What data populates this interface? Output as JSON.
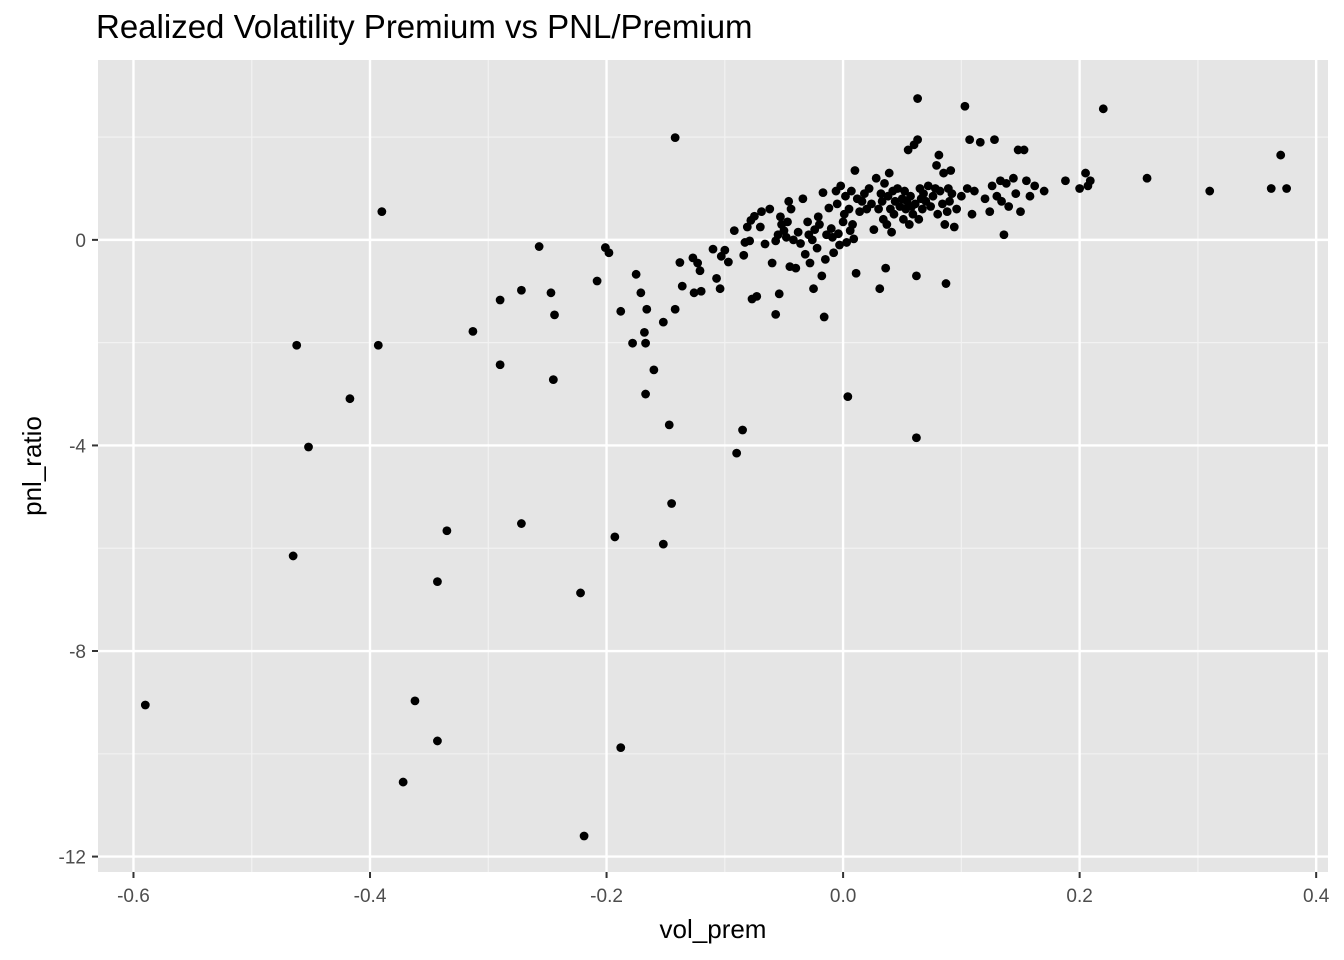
{
  "chart_data": {
    "type": "scatter",
    "title": "Realized Volatility Premium vs PNL/Premium",
    "xlabel": "vol_prem",
    "ylabel": "pnl_ratio",
    "xlim": [
      -0.63,
      0.41
    ],
    "ylim": [
      -12.3,
      3.5
    ],
    "x_ticks": [
      -0.6,
      -0.4,
      -0.2,
      0.0,
      0.2,
      0.4
    ],
    "x_tick_labels": [
      "-0.6",
      "-0.4",
      "-0.2",
      "0.0",
      "0.2",
      "0.4"
    ],
    "y_ticks": [
      -12,
      -8,
      -4,
      0
    ],
    "y_tick_labels": [
      "-12",
      "-8",
      "-4",
      "0"
    ],
    "grid": true,
    "background": "#e5e5e5",
    "point_color": "#000000",
    "points": [
      [
        -0.59,
        -9.05
      ],
      [
        -0.465,
        -6.15
      ],
      [
        -0.462,
        -2.05
      ],
      [
        -0.452,
        -4.03
      ],
      [
        -0.417,
        -3.09
      ],
      [
        -0.393,
        -2.05
      ],
      [
        -0.39,
        0.55
      ],
      [
        -0.372,
        -10.55
      ],
      [
        -0.362,
        -8.97
      ],
      [
        -0.343,
        -9.75
      ],
      [
        -0.343,
        -6.65
      ],
      [
        -0.335,
        -5.66
      ],
      [
        -0.313,
        -1.78
      ],
      [
        -0.29,
        -2.43
      ],
      [
        -0.29,
        -1.17
      ],
      [
        -0.272,
        -5.52
      ],
      [
        -0.272,
        -0.98
      ],
      [
        -0.257,
        -0.13
      ],
      [
        -0.247,
        -1.03
      ],
      [
        -0.245,
        -2.72
      ],
      [
        -0.244,
        -1.46
      ],
      [
        -0.222,
        -6.87
      ],
      [
        -0.219,
        -11.6
      ],
      [
        -0.208,
        -0.8
      ],
      [
        -0.201,
        -0.15
      ],
      [
        -0.198,
        -0.25
      ],
      [
        -0.193,
        -5.78
      ],
      [
        -0.188,
        -9.88
      ],
      [
        -0.188,
        -1.39
      ],
      [
        -0.178,
        -2.01
      ],
      [
        -0.175,
        -0.67
      ],
      [
        -0.171,
        -1.03
      ],
      [
        -0.168,
        -1.8
      ],
      [
        -0.167,
        -2.01
      ],
      [
        -0.167,
        -3.0
      ],
      [
        -0.166,
        -1.35
      ],
      [
        -0.16,
        -2.53
      ],
      [
        -0.152,
        -1.6
      ],
      [
        -0.152,
        -5.92
      ],
      [
        -0.147,
        -3.6
      ],
      [
        -0.145,
        -5.13
      ],
      [
        -0.142,
        1.99
      ],
      [
        -0.142,
        -1.35
      ],
      [
        -0.138,
        -0.44
      ],
      [
        -0.136,
        -0.9
      ],
      [
        -0.127,
        -0.35
      ],
      [
        -0.126,
        -1.03
      ],
      [
        -0.123,
        -0.45
      ],
      [
        -0.121,
        -0.6
      ],
      [
        -0.12,
        -1.0
      ],
      [
        -0.11,
        -0.18
      ],
      [
        -0.107,
        -0.75
      ],
      [
        -0.104,
        -0.95
      ],
      [
        -0.103,
        -0.32
      ],
      [
        -0.1,
        -0.2
      ],
      [
        -0.097,
        -0.43
      ],
      [
        -0.092,
        0.18
      ],
      [
        -0.09,
        -4.15
      ],
      [
        -0.085,
        -3.7
      ],
      [
        -0.084,
        -0.3
      ],
      [
        -0.083,
        -0.05
      ],
      [
        -0.081,
        0.25
      ],
      [
        -0.079,
        -0.02
      ],
      [
        -0.078,
        0.38
      ],
      [
        -0.077,
        -1.15
      ],
      [
        -0.075,
        0.46
      ],
      [
        -0.073,
        -1.1
      ],
      [
        -0.07,
        0.25
      ],
      [
        -0.069,
        0.55
      ],
      [
        -0.066,
        -0.08
      ],
      [
        -0.062,
        0.6
      ],
      [
        -0.06,
        -0.45
      ],
      [
        -0.057,
        -0.02
      ],
      [
        -0.057,
        -1.45
      ],
      [
        -0.055,
        0.1
      ],
      [
        -0.054,
        -1.05
      ],
      [
        -0.053,
        0.45
      ],
      [
        -0.052,
        0.3
      ],
      [
        -0.05,
        0.18
      ],
      [
        -0.048,
        0.05
      ],
      [
        -0.047,
        0.35
      ],
      [
        -0.046,
        0.75
      ],
      [
        -0.045,
        -0.52
      ],
      [
        -0.044,
        0.6
      ],
      [
        -0.042,
        0.0
      ],
      [
        -0.04,
        -0.55
      ],
      [
        -0.038,
        0.15
      ],
      [
        -0.036,
        -0.07
      ],
      [
        -0.034,
        0.8
      ],
      [
        -0.032,
        -0.28
      ],
      [
        -0.03,
        0.35
      ],
      [
        -0.029,
        0.1
      ],
      [
        -0.028,
        -0.45
      ],
      [
        -0.026,
        0.0
      ],
      [
        -0.025,
        -0.95
      ],
      [
        -0.024,
        0.2
      ],
      [
        -0.022,
        -0.16
      ],
      [
        -0.021,
        0.45
      ],
      [
        -0.02,
        0.3
      ],
      [
        -0.018,
        -0.7
      ],
      [
        -0.017,
        0.92
      ],
      [
        -0.016,
        -1.5
      ],
      [
        -0.015,
        -0.38
      ],
      [
        -0.014,
        0.1
      ],
      [
        -0.012,
        0.62
      ],
      [
        -0.01,
        0.22
      ],
      [
        -0.009,
        0.05
      ],
      [
        -0.008,
        -0.25
      ],
      [
        -0.006,
        0.95
      ],
      [
        -0.005,
        0.7
      ],
      [
        -0.004,
        0.12
      ],
      [
        -0.003,
        -0.1
      ],
      [
        -0.002,
        1.05
      ],
      [
        0.0,
        0.35
      ],
      [
        0.001,
        0.5
      ],
      [
        0.002,
        0.85
      ],
      [
        0.003,
        -0.05
      ],
      [
        0.004,
        -3.05
      ],
      [
        0.005,
        0.6
      ],
      [
        0.006,
        0.18
      ],
      [
        0.007,
        0.95
      ],
      [
        0.008,
        0.3
      ],
      [
        0.009,
        0.02
      ],
      [
        0.01,
        1.35
      ],
      [
        0.011,
        -0.65
      ],
      [
        0.012,
        0.8
      ],
      [
        0.014,
        0.55
      ],
      [
        0.016,
        0.75
      ],
      [
        0.018,
        0.9
      ],
      [
        0.02,
        0.6
      ],
      [
        0.022,
        1.0
      ],
      [
        0.024,
        0.7
      ],
      [
        0.026,
        0.2
      ],
      [
        0.028,
        1.2
      ],
      [
        0.03,
        0.6
      ],
      [
        0.031,
        -0.95
      ],
      [
        0.032,
        0.9
      ],
      [
        0.033,
        0.75
      ],
      [
        0.034,
        0.4
      ],
      [
        0.035,
        1.1
      ],
      [
        0.036,
        -0.55
      ],
      [
        0.037,
        0.3
      ],
      [
        0.038,
        0.85
      ],
      [
        0.039,
        1.3
      ],
      [
        0.04,
        0.6
      ],
      [
        0.041,
        0.15
      ],
      [
        0.042,
        0.95
      ],
      [
        0.043,
        0.5
      ],
      [
        0.044,
        0.75
      ],
      [
        0.046,
        1.0
      ],
      [
        0.048,
        0.65
      ],
      [
        0.05,
        0.8
      ],
      [
        0.051,
        0.4
      ],
      [
        0.052,
        0.95
      ],
      [
        0.053,
        0.6
      ],
      [
        0.054,
        0.75
      ],
      [
        0.055,
        1.75
      ],
      [
        0.056,
        0.3
      ],
      [
        0.057,
        0.85
      ],
      [
        0.058,
        0.65
      ],
      [
        0.059,
        0.5
      ],
      [
        0.06,
        1.85
      ],
      [
        0.061,
        0.7
      ],
      [
        0.062,
        -3.85
      ],
      [
        0.062,
        -0.7
      ],
      [
        0.063,
        2.75
      ],
      [
        0.063,
        1.95
      ],
      [
        0.064,
        0.4
      ],
      [
        0.065,
        1.0
      ],
      [
        0.066,
        0.8
      ],
      [
        0.067,
        0.6
      ],
      [
        0.068,
        0.9
      ],
      [
        0.07,
        0.75
      ],
      [
        0.072,
        1.05
      ],
      [
        0.074,
        0.65
      ],
      [
        0.076,
        0.85
      ],
      [
        0.078,
        1.0
      ],
      [
        0.079,
        1.45
      ],
      [
        0.08,
        0.5
      ],
      [
        0.081,
        1.65
      ],
      [
        0.082,
        0.95
      ],
      [
        0.084,
        0.7
      ],
      [
        0.085,
        1.3
      ],
      [
        0.086,
        0.3
      ],
      [
        0.087,
        -0.85
      ],
      [
        0.088,
        0.55
      ],
      [
        0.089,
        1.0
      ],
      [
        0.09,
        0.75
      ],
      [
        0.091,
        1.35
      ],
      [
        0.092,
        0.9
      ],
      [
        0.094,
        0.25
      ],
      [
        0.096,
        0.6
      ],
      [
        0.1,
        0.85
      ],
      [
        0.103,
        2.6
      ],
      [
        0.105,
        1.0
      ],
      [
        0.107,
        1.95
      ],
      [
        0.109,
        0.5
      ],
      [
        0.111,
        0.95
      ],
      [
        0.116,
        1.9
      ],
      [
        0.12,
        0.8
      ],
      [
        0.124,
        0.55
      ],
      [
        0.126,
        1.05
      ],
      [
        0.128,
        1.95
      ],
      [
        0.13,
        0.85
      ],
      [
        0.133,
        1.15
      ],
      [
        0.134,
        0.75
      ],
      [
        0.136,
        0.1
      ],
      [
        0.138,
        1.1
      ],
      [
        0.14,
        0.65
      ],
      [
        0.144,
        1.2
      ],
      [
        0.146,
        0.9
      ],
      [
        0.148,
        1.75
      ],
      [
        0.15,
        0.55
      ],
      [
        0.153,
        1.75
      ],
      [
        0.155,
        1.15
      ],
      [
        0.158,
        0.85
      ],
      [
        0.162,
        1.05
      ],
      [
        0.17,
        0.95
      ],
      [
        0.188,
        1.15
      ],
      [
        0.2,
        1.0
      ],
      [
        0.205,
        1.3
      ],
      [
        0.207,
        1.05
      ],
      [
        0.209,
        1.15
      ],
      [
        0.22,
        2.55
      ],
      [
        0.257,
        1.2
      ],
      [
        0.31,
        0.95
      ],
      [
        0.362,
        1.0
      ],
      [
        0.37,
        1.65
      ],
      [
        0.375,
        1.0
      ]
    ]
  }
}
